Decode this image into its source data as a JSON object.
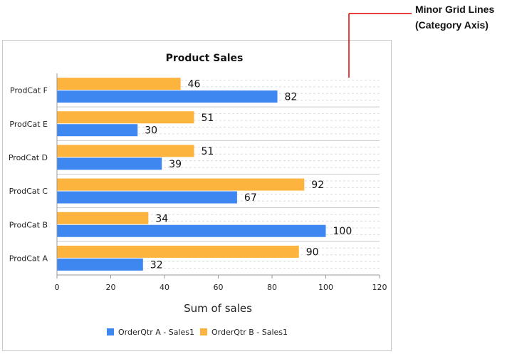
{
  "callout": {
    "line1": "Minor Grid Lines",
    "line2": "(Category Axis)",
    "color": "#e00000"
  },
  "chart_data": {
    "type": "bar",
    "orientation": "horizontal",
    "title": "Product Sales",
    "xlabel": "Sum of sales",
    "ylabel": "",
    "xlim": [
      0,
      120
    ],
    "xticks": [
      0,
      20,
      40,
      60,
      80,
      100,
      120
    ],
    "categories": [
      "ProdCat A",
      "ProdCat B",
      "ProdCat C",
      "ProdCat D",
      "ProdCat E",
      "ProdCat F"
    ],
    "series": [
      {
        "name": "OrderQtr A - Sales1",
        "color": "#3f87f0",
        "values": [
          32,
          100,
          67,
          39,
          30,
          82
        ]
      },
      {
        "name": "OrderQtr B - Sales1",
        "color": "#fdb43f",
        "values": [
          90,
          34,
          92,
          51,
          51,
          46
        ]
      }
    ],
    "data_labels": true,
    "grid": {
      "major_category": true,
      "minor_category": true,
      "value_axis": false
    },
    "legend": "bottom"
  }
}
